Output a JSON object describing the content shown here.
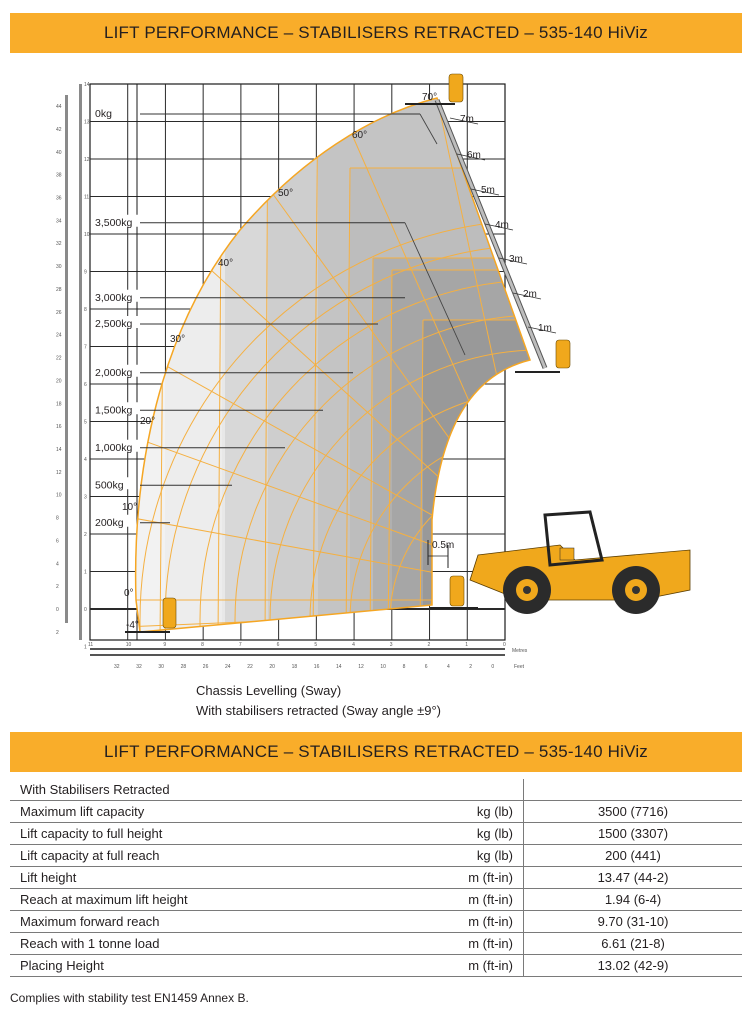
{
  "header": {
    "title": "LIFT PERFORMANCE – STABILISERS RETRACTED – 535-140 HiViz"
  },
  "colors": {
    "accent": "#f9ad2a",
    "envelope_line": "#f5a623",
    "zone_1": "#efefef",
    "zone_2": "#dcdcdc",
    "zone_3": "#c8c8c8",
    "zone_4": "#b4b4b4",
    "zone_5": "#a3a3a3",
    "zone_6": "#939393",
    "machine": "#f0a81c"
  },
  "chart_data": {
    "type": "load-chart",
    "title": "LIFT PERFORMANCE – STABILISERS RETRACTED – 535-140 HiViz",
    "xlabel_metric": "Metres",
    "xlabel_imperial": "Feet",
    "x_metres_ticks": [
      "11",
      "10",
      "9",
      "8",
      "7",
      "6",
      "5",
      "4",
      "3",
      "2",
      "1",
      "0"
    ],
    "x_feet_ticks": [
      "32",
      "32",
      "30",
      "28",
      "26",
      "24",
      "22",
      "20",
      "18",
      "16",
      "14",
      "12",
      "10",
      "8",
      "6",
      "4",
      "2",
      "0"
    ],
    "y_metres_ticks": [
      "14",
      "13",
      "12",
      "11",
      "10",
      "9",
      "8",
      "7",
      "6",
      "5",
      "4",
      "3",
      "2",
      "1",
      "0",
      "1"
    ],
    "y_feet_ticks": [
      "44",
      "42",
      "40",
      "38",
      "36",
      "34",
      "32",
      "30",
      "28",
      "26",
      "24",
      "22",
      "20",
      "18",
      "16",
      "14",
      "12",
      "10",
      "8",
      "6",
      "4",
      "2",
      "0",
      "2"
    ],
    "xlim_m": [
      11,
      0
    ],
    "ylim_m": [
      -1,
      14
    ],
    "grid": true,
    "load_zones": [
      {
        "label": "0kg",
        "y_m": 13.2
      },
      {
        "label": "3,500kg",
        "y_m": 10.3
      },
      {
        "label": "3,000kg",
        "y_m": 8.3
      },
      {
        "label": "2,500kg",
        "y_m": 7.6
      },
      {
        "label": "2,000kg",
        "y_m": 6.3
      },
      {
        "label": "1,500kg",
        "y_m": 5.3
      },
      {
        "label": "1,000kg",
        "y_m": 4.3
      },
      {
        "label": "500kg",
        "y_m": 3.3
      },
      {
        "label": "200kg",
        "y_m": 2.3
      }
    ],
    "boom_angles": [
      "70°",
      "60°",
      "50°",
      "40°",
      "30°",
      "20°",
      "10°",
      "0°",
      "-4°"
    ],
    "extension_marks": [
      "7m",
      "6m",
      "5m",
      "4m",
      "3m",
      "2m",
      "1m"
    ],
    "annotation": "0.5m",
    "max_lift_height_m": 13.47,
    "max_forward_reach_m": 9.7
  },
  "captions": {
    "line1": "Chassis Levelling (Sway)",
    "line2": "With stabilisers retracted (Sway angle ±9°)"
  },
  "table": {
    "title": "LIFT PERFORMANCE – STABILISERS RETRACTED – 535-140 HiViz",
    "section_label": "With Stabilisers Retracted",
    "rows": [
      {
        "label": "Maximum lift capacity",
        "unit": "kg (lb)",
        "value": "3500 (7716)"
      },
      {
        "label": "Lift capacity to full height",
        "unit": "kg (lb)",
        "value": "1500 (3307)"
      },
      {
        "label": "Lift capacity at full reach",
        "unit": "kg (lb)",
        "value": "200 (441)"
      },
      {
        "label": "Lift height",
        "unit": "m (ft-in)",
        "value": "13.47 (44-2)"
      },
      {
        "label": "Reach at maximum lift height",
        "unit": "m (ft-in)",
        "value": "1.94 (6-4)"
      },
      {
        "label": "Maximum forward reach",
        "unit": "m (ft-in)",
        "value": "9.70 (31-10)"
      },
      {
        "label": "Reach with 1 tonne load",
        "unit": "m (ft-in)",
        "value": "6.61 (21-8)"
      },
      {
        "label": "Placing Height",
        "unit": "m (ft-in)",
        "value": "13.02 (42-9)"
      }
    ],
    "footnote": "Complies with stability test EN1459 Annex B."
  }
}
